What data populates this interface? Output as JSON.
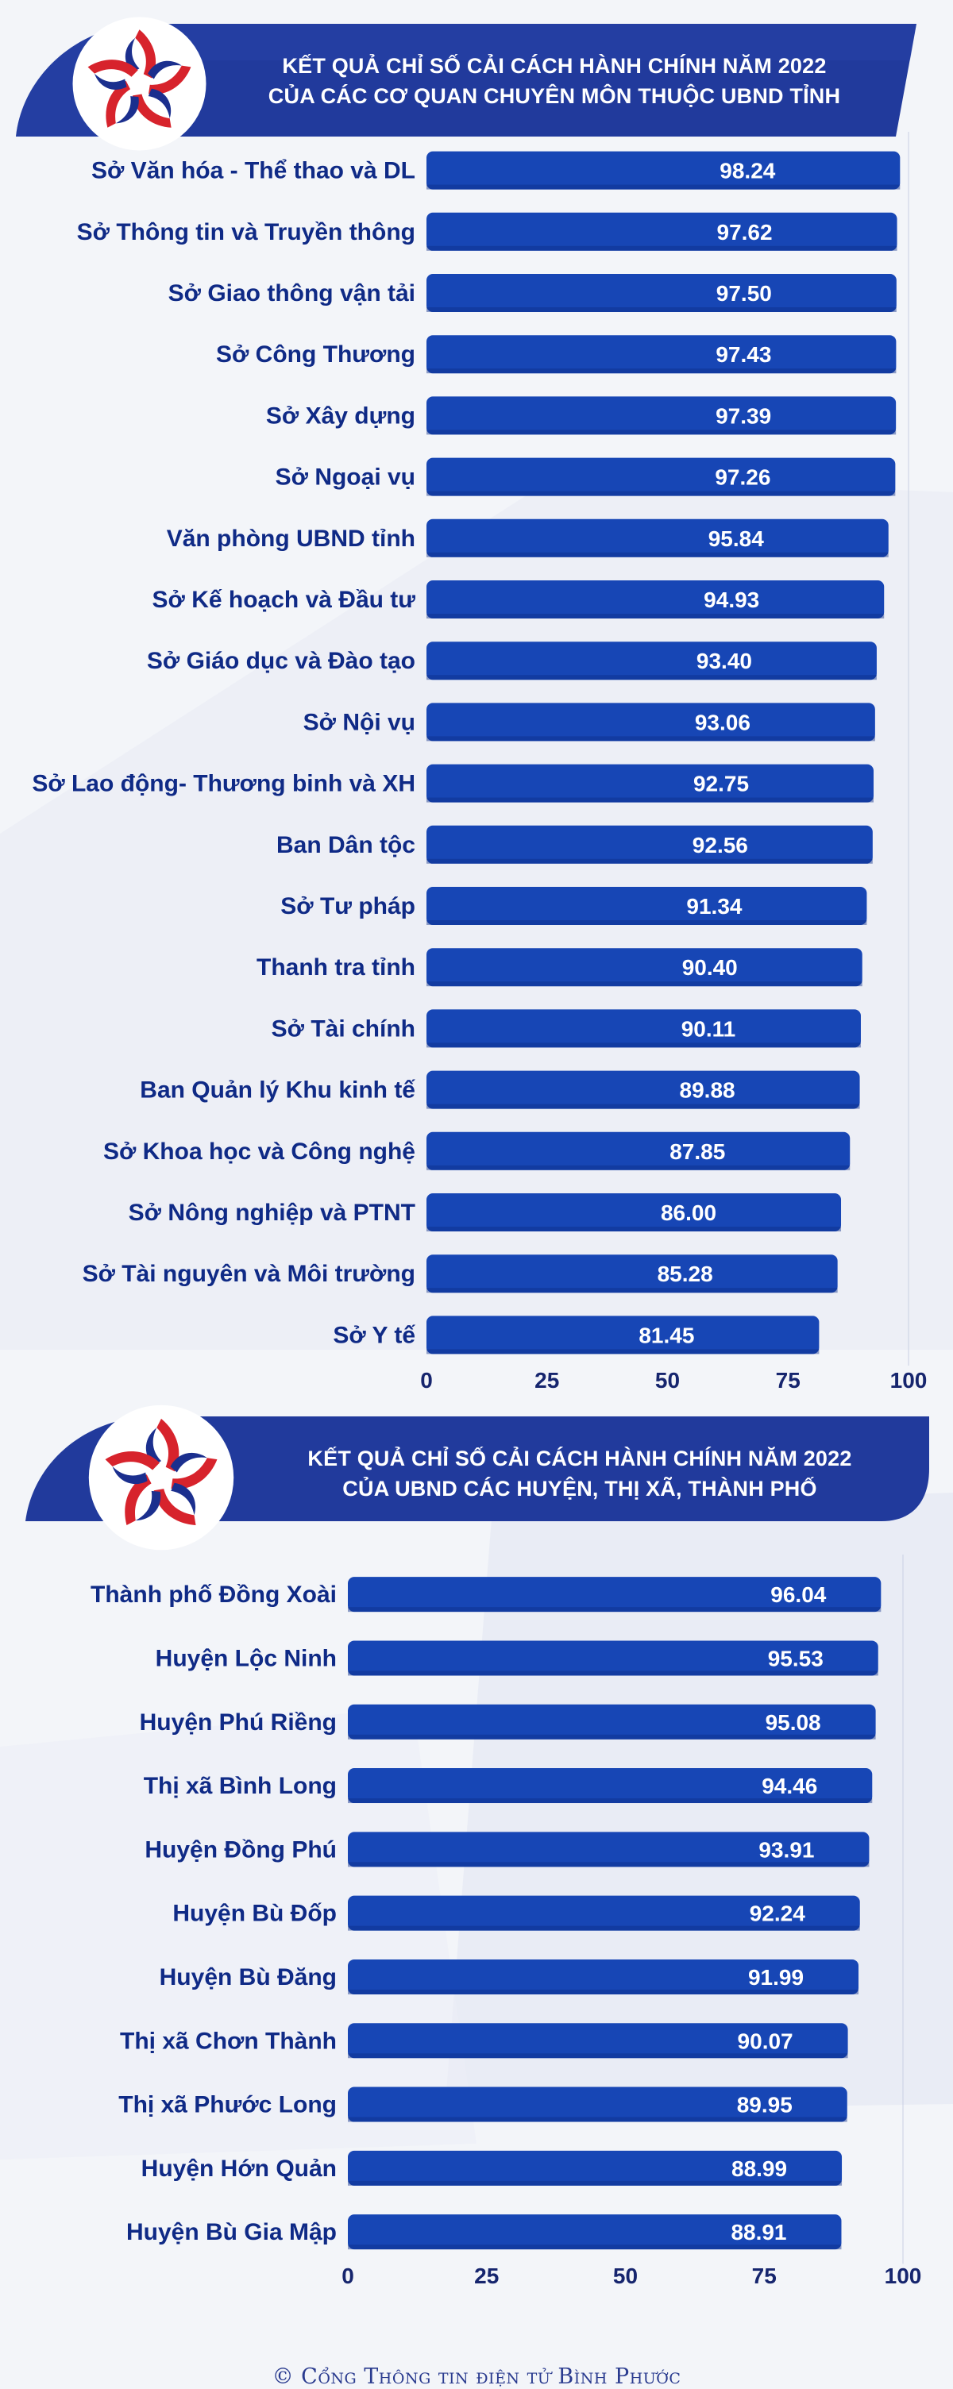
{
  "colors": {
    "bar": "#1746b5",
    "bar_dark": "#0d2f8a",
    "label": "#0f2a86",
    "banner": "#213a9c",
    "axis": "#16256e",
    "logo_red": "#d7232c",
    "logo_blue": "#1b2f8e"
  },
  "header1": {
    "line1": "KẾT QUẢ CHỈ SỐ CẢI CÁCH HÀNH CHÍNH NĂM 2022",
    "line2": "CỦA CÁC CƠ QUAN CHUYÊN MÔN THUỘC UBND TỈNH",
    "logo_icon": "star-hands-logo-icon"
  },
  "header2": {
    "line1": "KẾT QUẢ CHỈ SỐ CẢI CÁCH HÀNH CHÍNH NĂM 2022",
    "line2": "CỦA UBND CÁC  HUYỆN, THỊ XÃ, THÀNH PHỐ",
    "logo_icon": "star-hands-logo-icon"
  },
  "chart_data": [
    {
      "type": "bar",
      "orientation": "horizontal",
      "title": "KẾT QUẢ CHỈ SỐ CẢI CÁCH HÀNH CHÍNH NĂM 2022 CỦA CÁC CƠ QUAN CHUYÊN MÔN THUỘC UBND TỈNH",
      "categories": [
        "Sở Văn hóa - Thể thao và DL",
        "Sở Thông tin và Truyền thông",
        "Sở Giao thông vận tải",
        "Sở Công Thương",
        "Sở Xây dựng",
        "Sở Ngoại vụ",
        "Văn phòng UBND tỉnh",
        "Sở Kế hoạch và Đầu tư",
        "Sở Giáo dục và Đào tạo",
        "Sở Nội vụ",
        "Sở Lao động- Thương binh và XH",
        "Ban Dân tộc",
        "Sở Tư pháp",
        "Thanh tra tỉnh",
        "Sở Tài chính",
        "Ban Quản lý Khu kinh tế",
        "Sở Khoa học và Công nghệ",
        "Sở Nông nghiệp và PTNT",
        "Sở Tài nguyên và Môi trường",
        "Sở Y tế"
      ],
      "values": [
        98.24,
        97.62,
        97.5,
        97.43,
        97.39,
        97.26,
        95.84,
        94.93,
        93.4,
        93.06,
        92.75,
        92.56,
        91.34,
        90.4,
        90.11,
        89.88,
        87.85,
        86.0,
        85.28,
        81.45
      ],
      "value_labels": [
        "98.24",
        "97.62",
        "97.50",
        "97.43",
        "97.39",
        "97.26",
        "95.84",
        "94.93",
        "93.40",
        "93.06",
        "92.75",
        "92.56",
        "91.34",
        "90.40",
        "90.11",
        "89.88",
        "87.85",
        "86.00",
        "85.28",
        "81.45"
      ],
      "xlim": [
        0,
        100
      ],
      "xticks": [
        "0",
        "25",
        "50",
        "75",
        "100"
      ],
      "xtick_values": [
        0,
        25,
        50,
        75,
        100
      ],
      "grid": false,
      "legend": "none"
    },
    {
      "type": "bar",
      "orientation": "horizontal",
      "title": "KẾT QUẢ CHỈ SỐ CẢI CÁCH HÀNH CHÍNH NĂM 2022 CỦA UBND CÁC HUYỆN, THỊ XÃ, THÀNH PHỐ",
      "categories": [
        "Thành phố Đồng Xoài",
        "Huyện Lộc Ninh",
        "Huyện Phú Riềng",
        "Thị xã Bình Long",
        "Huyện Đồng Phú",
        "Huyện Bù Đốp",
        "Huyện Bù Đăng",
        "Thị xã Chơn Thành",
        "Thị xã Phước Long",
        "Huyện Hớn Quản",
        "Huyện Bù Gia Mập"
      ],
      "values": [
        96.04,
        95.53,
        95.08,
        94.46,
        93.91,
        92.24,
        91.99,
        90.07,
        89.95,
        88.99,
        88.91
      ],
      "value_labels": [
        "96.04",
        "95.53",
        "95.08",
        "94.46",
        "93.91",
        "92.24",
        "91.99",
        "90.07",
        "89.95",
        "88.99",
        "88.91"
      ],
      "xlim": [
        0,
        100
      ],
      "xticks": [
        "0",
        "25",
        "50",
        "75",
        "100"
      ],
      "xtick_values": [
        0,
        25,
        50,
        75,
        100
      ],
      "grid": false,
      "legend": "none"
    }
  ],
  "footer": {
    "text": "© Cổng Thông tin điện tử Bình Phước"
  }
}
